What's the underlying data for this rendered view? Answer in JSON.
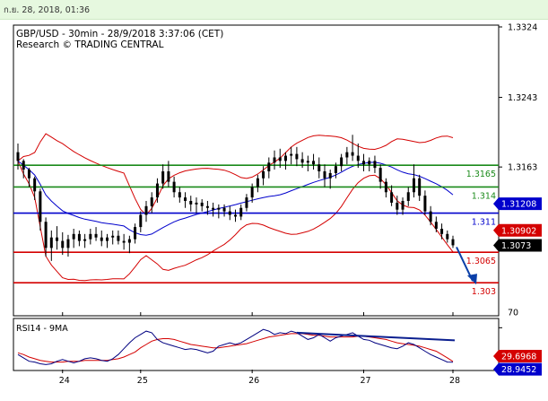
{
  "banner": {
    "datetime": "ก.ย. 28, 2018, 01:36"
  },
  "header": {
    "title": "GBP/USD - 30min - 28/9/2018 3:37:06 (CET)",
    "subtitle": "Research © TRADING CENTRAL"
  },
  "chart_data": [
    {
      "type": "candlestick",
      "panel": "price",
      "x_tick_labels": [
        "24",
        "25",
        "26",
        "27",
        "28"
      ],
      "y_tick_labels": [
        "1.3324",
        "1.3243",
        "1.3163"
      ],
      "ylim": [
        1.2992,
        1.3324
      ],
      "candles": [
        [
          1.318,
          1.319,
          1.316,
          1.317
        ],
        [
          1.317,
          1.3172,
          1.315,
          1.316
        ],
        [
          1.316,
          1.3162,
          1.314,
          1.315
        ],
        [
          1.315,
          1.3152,
          1.3125,
          1.3135
        ],
        [
          1.3135,
          1.3138,
          1.309,
          1.31
        ],
        [
          1.31,
          1.3105,
          1.306,
          1.307
        ],
        [
          1.307,
          1.309,
          1.3055,
          1.3082
        ],
        [
          1.3082,
          1.3095,
          1.3068,
          1.3078
        ],
        [
          1.3078,
          1.3088,
          1.3062,
          1.307
        ],
        [
          1.307,
          1.3085,
          1.306,
          1.308
        ],
        [
          1.308,
          1.3092,
          1.307,
          1.3086
        ],
        [
          1.3086,
          1.309,
          1.3072,
          1.3078
        ],
        [
          1.3078,
          1.3086,
          1.307,
          1.308
        ],
        [
          1.308,
          1.3092,
          1.3074,
          1.3086
        ],
        [
          1.3086,
          1.3094,
          1.3078,
          1.3082
        ],
        [
          1.3082,
          1.309,
          1.3072,
          1.3078
        ],
        [
          1.3078,
          1.3086,
          1.307,
          1.3082
        ],
        [
          1.3082,
          1.309,
          1.3074,
          1.3084
        ],
        [
          1.3084,
          1.309,
          1.3074,
          1.3078
        ],
        [
          1.3078,
          1.3086,
          1.3068,
          1.3076
        ],
        [
          1.3076,
          1.3084,
          1.3064,
          1.308
        ],
        [
          1.308,
          1.3098,
          1.3075,
          1.3094
        ],
        [
          1.3094,
          1.3112,
          1.3088,
          1.3108
        ],
        [
          1.3108,
          1.3124,
          1.31,
          1.3118
        ],
        [
          1.3118,
          1.3134,
          1.311,
          1.3128
        ],
        [
          1.3128,
          1.315,
          1.3122,
          1.3144
        ],
        [
          1.3144,
          1.3166,
          1.3138,
          1.3158
        ],
        [
          1.3158,
          1.317,
          1.314,
          1.3146
        ],
        [
          1.3146,
          1.3152,
          1.3128,
          1.3134
        ],
        [
          1.3134,
          1.314,
          1.3122,
          1.3128
        ],
        [
          1.3128,
          1.3134,
          1.3116,
          1.3124
        ],
        [
          1.3124,
          1.313,
          1.3112,
          1.312
        ],
        [
          1.312,
          1.3128,
          1.311,
          1.3122
        ],
        [
          1.3122,
          1.3126,
          1.3112,
          1.3118
        ],
        [
          1.3118,
          1.3124,
          1.3108,
          1.3116
        ],
        [
          1.3116,
          1.3122,
          1.3106,
          1.3114
        ],
        [
          1.3114,
          1.312,
          1.3104,
          1.3116
        ],
        [
          1.3116,
          1.312,
          1.3106,
          1.3112
        ],
        [
          1.3112,
          1.3118,
          1.3102,
          1.3108
        ],
        [
          1.3108,
          1.3114,
          1.31,
          1.3106
        ],
        [
          1.3106,
          1.312,
          1.3102,
          1.3116
        ],
        [
          1.3116,
          1.3132,
          1.3112,
          1.3128
        ],
        [
          1.3128,
          1.3144,
          1.3122,
          1.314
        ],
        [
          1.314,
          1.3154,
          1.3134,
          1.315
        ],
        [
          1.315,
          1.3164,
          1.3142,
          1.3158
        ],
        [
          1.3158,
          1.3174,
          1.315,
          1.3168
        ],
        [
          1.3168,
          1.3182,
          1.316,
          1.3174
        ],
        [
          1.3174,
          1.3184,
          1.3162,
          1.317
        ],
        [
          1.317,
          1.318,
          1.316,
          1.3176
        ],
        [
          1.3176,
          1.3186,
          1.3166,
          1.3178
        ],
        [
          1.3178,
          1.3186,
          1.3164,
          1.3172
        ],
        [
          1.3172,
          1.318,
          1.3162,
          1.3168
        ],
        [
          1.3168,
          1.3176,
          1.3158,
          1.317
        ],
        [
          1.317,
          1.3178,
          1.316,
          1.3166
        ],
        [
          1.3166,
          1.3174,
          1.315,
          1.3158
        ],
        [
          1.3158,
          1.3166,
          1.314,
          1.315
        ],
        [
          1.315,
          1.316,
          1.3138,
          1.3156
        ],
        [
          1.3156,
          1.3168,
          1.315,
          1.3164
        ],
        [
          1.3164,
          1.3178,
          1.3158,
          1.3174
        ],
        [
          1.3174,
          1.3186,
          1.3166,
          1.318
        ],
        [
          1.318,
          1.32,
          1.317,
          1.3176
        ],
        [
          1.3176,
          1.319,
          1.3162,
          1.317
        ],
        [
          1.317,
          1.3178,
          1.3158,
          1.3166
        ],
        [
          1.3166,
          1.3174,
          1.3158,
          1.317
        ],
        [
          1.317,
          1.3176,
          1.3156,
          1.3162
        ],
        [
          1.3162,
          1.3166,
          1.3138,
          1.3146
        ],
        [
          1.3146,
          1.315,
          1.3128,
          1.3134
        ],
        [
          1.3134,
          1.3142,
          1.3118,
          1.3122
        ],
        [
          1.3122,
          1.313,
          1.3108,
          1.3114
        ],
        [
          1.3114,
          1.3128,
          1.3108,
          1.3124
        ],
        [
          1.3124,
          1.314,
          1.3118,
          1.3134
        ],
        [
          1.3134,
          1.3166,
          1.3128,
          1.315
        ],
        [
          1.315,
          1.3154,
          1.3124,
          1.313
        ],
        [
          1.313,
          1.3136,
          1.3108,
          1.3112
        ],
        [
          1.3112,
          1.3118,
          1.3096,
          1.31
        ],
        [
          1.31,
          1.3106,
          1.3088,
          1.3092
        ],
        [
          1.3092,
          1.3098,
          1.308,
          1.3086
        ],
        [
          1.3086,
          1.309,
          1.3076,
          1.308
        ],
        [
          1.308,
          1.3084,
          1.307,
          1.3073
        ]
      ],
      "horizontal_levels": [
        {
          "value": 1.3165,
          "label": "1.3165",
          "color": "#1a8a1a"
        },
        {
          "value": 1.314,
          "label": "1.314",
          "color": "#1a8a1a"
        },
        {
          "value": 1.311,
          "label": "1.311",
          "color": "#0000cc"
        },
        {
          "value": 1.3065,
          "label": "1.3065",
          "color": "#d40000"
        },
        {
          "value": 1.303,
          "label": "1.303",
          "color": "#d40000"
        }
      ],
      "value_badges": [
        {
          "value": 1.31208,
          "label": "1.31208",
          "color": "#0000cc"
        },
        {
          "value": 1.30902,
          "label": "1.30902",
          "color": "#d40000"
        },
        {
          "value": 1.3073,
          "label": "1.3073",
          "color": "#000000"
        }
      ],
      "projection_arrow": {
        "from": 1.3073,
        "to": 1.303,
        "color": "#0b3fa8"
      },
      "colors": {
        "bollinger": "#d40000",
        "moving_average": "#0000cc",
        "candle": "#000000"
      }
    },
    {
      "type": "line",
      "panel": "rsi",
      "title": "RSI14 - 9MA",
      "y_tick_labels": [
        "70"
      ],
      "ylim": [
        20,
        80
      ],
      "rsi": [
        38,
        34,
        30,
        29,
        27,
        26,
        27,
        30,
        32,
        30,
        28,
        30,
        33,
        34,
        33,
        31,
        30,
        33,
        38,
        45,
        52,
        58,
        62,
        66,
        64,
        56,
        52,
        50,
        48,
        46,
        44,
        45,
        44,
        42,
        40,
        42,
        48,
        50,
        52,
        50,
        52,
        56,
        60,
        64,
        68,
        66,
        62,
        64,
        63,
        66,
        64,
        60,
        56,
        58,
        62,
        58,
        54,
        58,
        60,
        62,
        64,
        60,
        56,
        55,
        52,
        50,
        48,
        46,
        45,
        48,
        52,
        50,
        46,
        42,
        38,
        35,
        32,
        29,
        28.9
      ],
      "rsi_ma": [
        40,
        38,
        35,
        33,
        31,
        30,
        29,
        29,
        29,
        30,
        30,
        30,
        31,
        31,
        31,
        31,
        31,
        32,
        33,
        35,
        38,
        41,
        46,
        50,
        54,
        56,
        57,
        57,
        56,
        54,
        52,
        50,
        49,
        48,
        47,
        46,
        46,
        47,
        48,
        49,
        50,
        51,
        53,
        55,
        57,
        59,
        60,
        61,
        62,
        63,
        63,
        63,
        62,
        61,
        61,
        60,
        59,
        59,
        59,
        59,
        59,
        60,
        60,
        59,
        58,
        57,
        56,
        54,
        52,
        51,
        50,
        49,
        48,
        46,
        44,
        42,
        38,
        34,
        29.7
      ],
      "trendline": {
        "from": 64,
        "to": 55,
        "color": "#0b1f8f"
      },
      "value_badges": [
        {
          "value": 29.6968,
          "label": "29.6968",
          "color": "#d40000"
        },
        {
          "value": 28.9452,
          "label": "28.9452",
          "color": "#0000cc"
        }
      ],
      "colors": {
        "rsi": "#000080",
        "ma": "#d40000"
      }
    }
  ]
}
